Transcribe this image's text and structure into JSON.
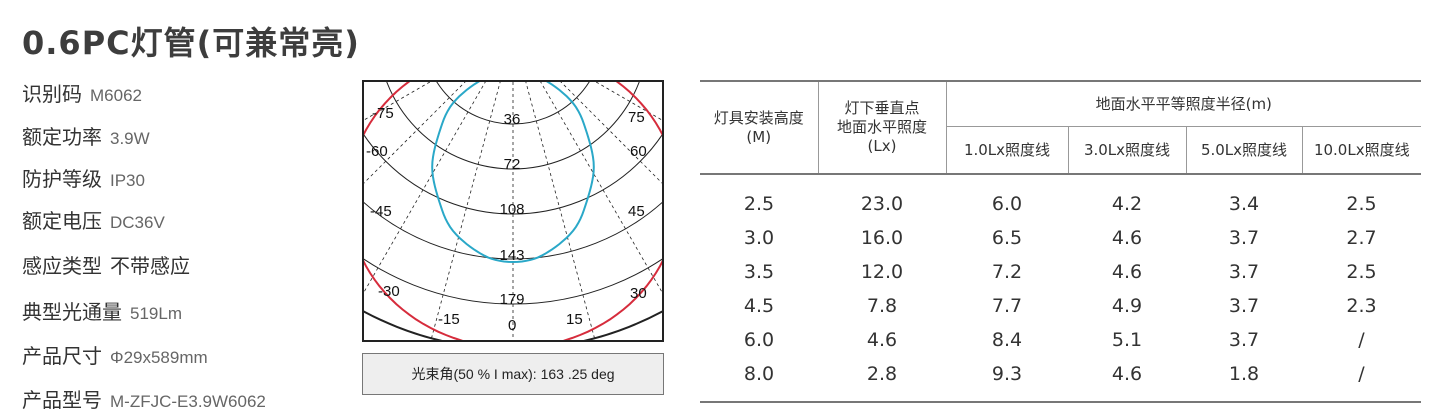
{
  "title": "0.6PC灯管(可兼常亮)",
  "specs": [
    {
      "label": "识别码",
      "value": "M6062"
    },
    {
      "label": "额定功率",
      "value": "3.9W"
    },
    {
      "label": "防护等级",
      "value": "IP30"
    },
    {
      "label": "额定电压",
      "value": "DC36V"
    },
    {
      "label": "感应类型",
      "value": "不带感应"
    },
    {
      "label": "典型光通量",
      "value": "519Lm"
    },
    {
      "label": "产品尺寸",
      "value": "Φ29x589mm"
    },
    {
      "label": "产品型号",
      "value": "M-ZFJC-E3.9W6062"
    }
  ],
  "polar": {
    "radial_labels": [
      "36",
      "72",
      "108",
      "143",
      "179"
    ],
    "angle_labels": [
      "-75",
      "75",
      "-60",
      "60",
      "-45",
      "45",
      "-30",
      "30",
      "-15",
      "0",
      "15"
    ],
    "colors": {
      "curve_a": "#d62c3c",
      "curve_b": "#2aa8c8",
      "grid": "#222222"
    }
  },
  "beam_angle": "光束角(50 % I max):  163 .25  deg",
  "table": {
    "headers": {
      "height": "灯具安装高度\n(M)",
      "illuminance": "灯下垂直点\n地面水平照度\n(Lx)",
      "radius_group": "地面水平平等照度半径(m)",
      "sub": [
        "1.0Lx照度线",
        "3.0Lx照度线",
        "5.0Lx照度线",
        "10.0Lx照度线"
      ]
    },
    "rows": [
      [
        "2.5",
        "23.0",
        "6.0",
        "4.2",
        "3.4",
        "2.5"
      ],
      [
        "3.0",
        "16.0",
        "6.5",
        "4.6",
        "3.7",
        "2.7"
      ],
      [
        "3.5",
        "12.0",
        "7.2",
        "4.6",
        "3.7",
        "2.5"
      ],
      [
        "4.5",
        "7.8",
        "7.7",
        "4.9",
        "3.7",
        "2.3"
      ],
      [
        "6.0",
        "4.6",
        "8.4",
        "5.1",
        "3.7",
        "/"
      ],
      [
        "8.0",
        "2.8",
        "9.3",
        "4.6",
        "1.8",
        "/"
      ]
    ]
  }
}
